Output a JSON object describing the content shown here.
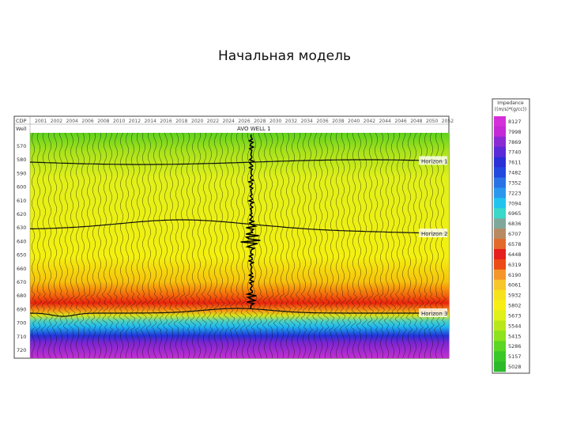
{
  "title": "Начальная модель",
  "section": {
    "row_labels": [
      "CDP",
      "Well"
    ],
    "cdp_labels": [
      "2001",
      "2002",
      "2004",
      "2006",
      "2008",
      "2010",
      "2012",
      "2014",
      "2016",
      "2018",
      "2020",
      "2022",
      "2024",
      "2026",
      "2028",
      "2030",
      "2032",
      "2034",
      "2036",
      "2038",
      "2040",
      "2042",
      "2044",
      "2046",
      "2048",
      "2050",
      "2052"
    ],
    "well": "AVO WELL 1",
    "time_labels": [
      "570",
      "580",
      "590",
      "600",
      "610",
      "620",
      "630",
      "640",
      "650",
      "660",
      "670",
      "680",
      "690",
      "700",
      "710",
      "720"
    ],
    "horizons": [
      "Horizon 1",
      "Horizon 2",
      "Horizon 3"
    ]
  },
  "colorbar": {
    "title": [
      "Impedance",
      "((m/s)*(g/cc))"
    ],
    "labels": [
      "8127",
      "7998",
      "7869",
      "7740",
      "7611",
      "7482",
      "7352",
      "7223",
      "7094",
      "6965",
      "6836",
      "6707",
      "6578",
      "6448",
      "6319",
      "6190",
      "6061",
      "5932",
      "5802",
      "5673",
      "5544",
      "5415",
      "5286",
      "5157",
      "5028"
    ]
  }
}
